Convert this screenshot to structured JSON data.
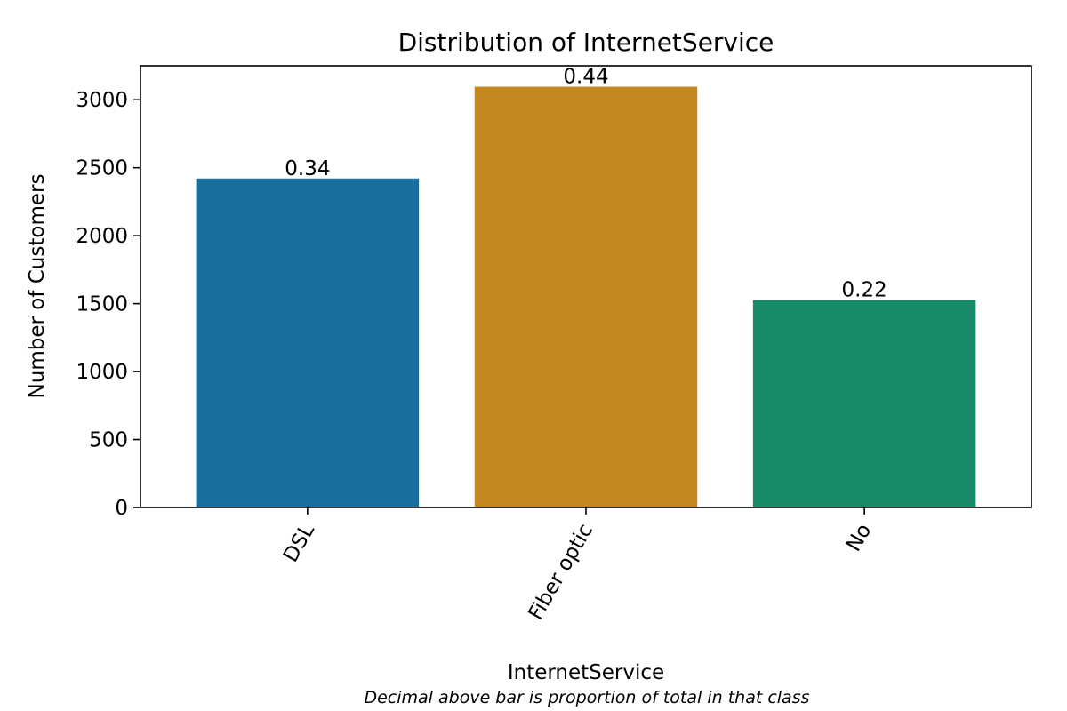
{
  "chart_data": {
    "type": "bar",
    "title": "Distribution of InternetService",
    "xlabel": "InternetService",
    "ylabel": "Number of Customers",
    "caption": "Decimal above bar is proportion of total in that class",
    "categories": [
      "DSL",
      "Fiber optic",
      "No"
    ],
    "values": [
      2421,
      3096,
      1526
    ],
    "data_labels": [
      "0.34",
      "0.44",
      "0.22"
    ],
    "colors": [
      "#1a6e9e",
      "#c38820",
      "#178c6a"
    ],
    "ylim": [
      0,
      3250
    ],
    "yticks": [
      0,
      500,
      1000,
      1500,
      2000,
      2500,
      3000
    ],
    "grid": false,
    "legend": "none"
  }
}
